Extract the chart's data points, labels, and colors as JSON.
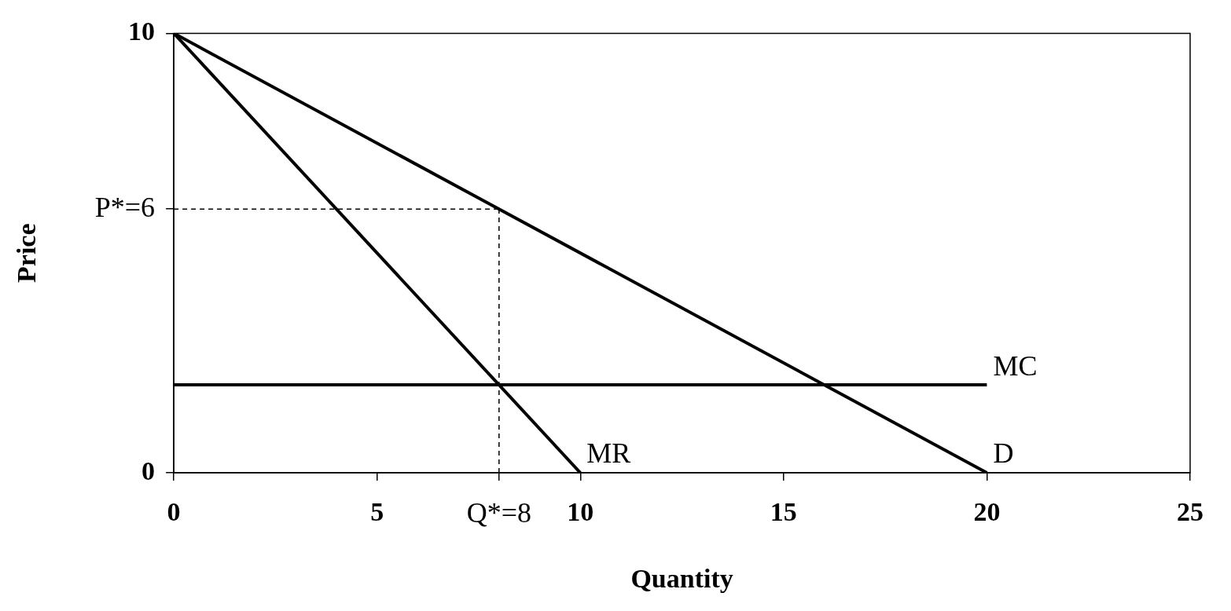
{
  "chart_data": {
    "type": "line",
    "xlabel": "Quantity",
    "ylabel": "Price",
    "xlim": [
      0,
      25
    ],
    "xticks": [
      0,
      5,
      {
        "value": 8,
        "label": "Q*=8"
      },
      10,
      15,
      20,
      25
    ],
    "ylim": [
      0,
      10
    ],
    "yticks": [
      0,
      {
        "value": 6,
        "label": "P*=6"
      },
      10
    ],
    "grid": false,
    "legend": false,
    "marker": "none",
    "series": [
      {
        "name": "D",
        "color": "#000000",
        "x": [
          0,
          20
        ],
        "values": [
          10,
          0
        ],
        "line_style": "solid"
      },
      {
        "name": "MR",
        "color": "#000000",
        "x": [
          0,
          10
        ],
        "values": [
          10,
          0
        ],
        "line_style": "solid"
      },
      {
        "name": "MC",
        "color": "#000000",
        "x": [
          0,
          20
        ],
        "values": [
          2,
          2
        ],
        "line_style": "solid"
      },
      {
        "color": "#000000",
        "x": [
          0,
          8
        ],
        "values": [
          6,
          6
        ],
        "line_style": "dashed"
      },
      {
        "color": "#000000",
        "x": [
          8,
          8
        ],
        "values": [
          0,
          6
        ],
        "line_style": "dashed"
      }
    ]
  }
}
